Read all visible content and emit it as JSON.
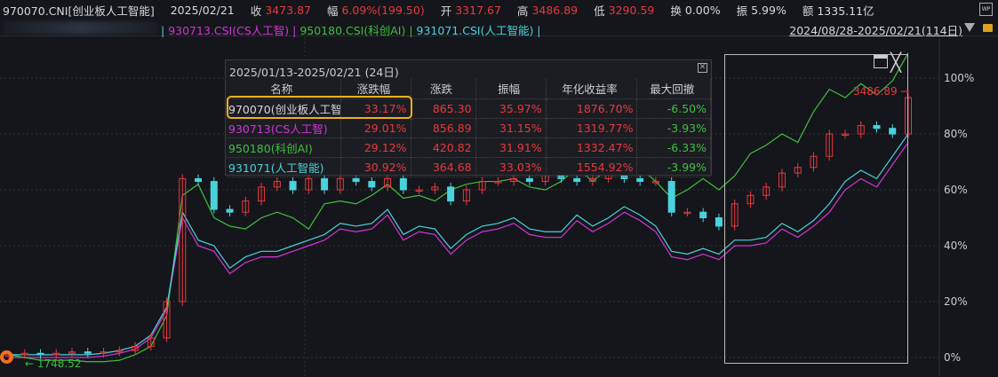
{
  "header": {
    "code": "970070.CNI[创业板人工智能]",
    "date": "2025/02/21",
    "close_label": "收",
    "close": "3473.87",
    "chg_label": "幅",
    "chg": "6.09%(199.50)",
    "open_label": "开",
    "open": "3317.67",
    "high_label": "高",
    "high": "3486.89",
    "low_label": "低",
    "low": "3290.59",
    "turnover_label": "换",
    "turnover": "0.00%",
    "amp_label": "振",
    "amp": "5.99%",
    "amount_label": "额",
    "amount": "1335.11亿",
    "wp_icon": "wp-icon"
  },
  "legend": {
    "items": [
      "930713.CSI(CS人工智)",
      "950180.CSI(科创AI)",
      "931071.CSI(人工智能)"
    ],
    "range": "2024/08/28-2025/02/21(114日)"
  },
  "tooltip": {
    "title": "2025/01/13-2025/02/21 (24日)",
    "columns": [
      "名称",
      "涨跌幅",
      "涨跌",
      "振幅",
      "年化收益率",
      "最大回撤"
    ],
    "rows": [
      [
        "970070(创业板人工智能)",
        "33.17%",
        "865.30",
        "35.97%",
        "1876.70%",
        "-6.50%"
      ],
      [
        "930713(CS人工智)",
        "29.01%",
        "856.89",
        "31.15%",
        "1319.77%",
        "-3.93%"
      ],
      [
        "950180(科创AI)",
        "29.12%",
        "420.82",
        "31.91%",
        "1332.47%",
        "-6.33%"
      ],
      [
        "931071(人工智能)",
        "30.92%",
        "364.68",
        "33.03%",
        "1554.92%",
        "-3.99%"
      ]
    ]
  },
  "colors": {
    "up": "#e8383d",
    "down": "#4ad2dc",
    "s930713": "#d235d8",
    "s950180": "#3fbf3f",
    "s931071": "#4ad2dc",
    "highlight": "#f0b020"
  },
  "chart_data": {
    "type": "line",
    "ylim": [
      0,
      110
    ],
    "y_ticks": [
      "0%",
      "20%",
      "40%",
      "60%",
      "80%",
      "100%"
    ],
    "high_label": "3486.89",
    "low_label": "1748.52",
    "candle_close_pct": [
      1,
      1.5,
      1,
      1.5,
      2,
      1.5,
      2,
      2.5,
      4,
      7,
      20,
      64,
      63,
      53,
      52,
      56,
      61,
      63,
      60,
      64,
      60,
      64,
      63,
      61,
      64,
      60,
      60,
      61,
      56,
      60,
      63,
      63,
      64,
      63,
      66,
      64,
      63,
      64,
      68,
      64,
      63,
      63,
      52,
      52,
      50,
      47,
      55,
      58,
      61,
      66,
      68,
      72,
      80,
      80,
      83,
      82,
      80,
      93
    ],
    "series": [
      {
        "name": "930713.CSI(CS人工智)",
        "values": [
          0,
          0,
          0,
          0,
          0,
          0,
          0.5,
          1.5,
          3,
          7,
          17,
          50,
          40,
          38,
          30,
          34,
          36,
          36,
          38,
          40,
          42,
          46,
          45,
          46,
          51,
          42,
          45,
          44,
          37,
          42,
          45,
          46,
          48,
          44,
          43,
          43,
          49,
          45,
          48,
          52,
          49,
          45,
          36,
          35,
          37,
          35,
          40,
          40,
          41,
          46,
          43,
          47,
          52,
          60,
          64,
          61,
          69,
          77
        ]
      },
      {
        "name": "950180.CSI(科创AI)",
        "values": [
          1,
          0,
          -1,
          -1,
          -1,
          -1.5,
          -1.5,
          -1,
          1,
          4,
          15,
          58,
          62,
          50,
          47,
          46,
          50,
          52,
          50,
          46,
          55,
          56,
          55,
          58,
          62,
          57,
          58,
          56,
          60,
          62,
          63,
          63,
          64,
          61,
          60,
          63,
          68,
          63,
          68,
          71,
          68,
          63,
          57,
          60,
          64,
          60,
          65,
          73,
          76,
          80,
          77,
          88,
          96,
          93,
          98,
          94,
          99,
          109
        ]
      },
      {
        "name": "931071.CSI(人工智能)",
        "values": [
          1,
          1,
          1,
          1,
          1,
          1,
          1.5,
          2.5,
          4,
          8,
          18,
          52,
          42,
          40,
          32,
          36,
          38,
          38,
          40,
          42,
          44,
          48,
          47,
          48,
          53,
          44,
          47,
          46,
          39,
          44,
          47,
          48,
          50,
          46,
          45,
          45,
          51,
          47,
          50,
          54,
          51,
          47,
          38,
          37,
          39,
          37,
          42,
          42,
          43,
          48,
          45,
          49,
          55,
          63,
          67,
          64,
          72,
          80
        ]
      }
    ]
  }
}
